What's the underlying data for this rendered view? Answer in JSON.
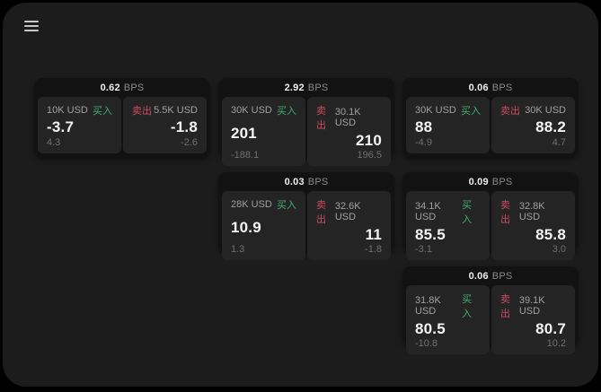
{
  "app": {
    "menu_icon": "hamburger-menu"
  },
  "labels": {
    "buy": "买入",
    "sell": "卖出",
    "bps": "BPS"
  },
  "colors": {
    "page_bg": "#1c1c1d",
    "outer_bg": "#000000",
    "card_bg": "#121213",
    "panel_bg": "#242425",
    "buy_green": "#3fae70",
    "sell_red": "#cc4b5c",
    "value_white": "#f4f4f4",
    "label_gray": "#a0a0a0",
    "sub_gray": "#6f6f6f"
  },
  "cards": [
    {
      "bps": "0.62",
      "buy": {
        "amount": "10K USD",
        "value": "-3.7",
        "delta": "4.3"
      },
      "sell": {
        "amount": "5.5K USD",
        "value": "-1.8",
        "delta": "-2.6"
      }
    },
    {
      "bps": "2.92",
      "buy": {
        "amount": "30K USD",
        "value": "201",
        "delta": "-188.1"
      },
      "sell": {
        "amount": "30.1K USD",
        "value": "210",
        "delta": "196.5"
      }
    },
    {
      "bps": "0.06",
      "buy": {
        "amount": "30K USD",
        "value": "88",
        "delta": "-4.9"
      },
      "sell": {
        "amount": "30K USD",
        "value": "88.2",
        "delta": "4.7"
      }
    },
    {
      "bps": "0.03",
      "buy": {
        "amount": "28K USD",
        "value": "10.9",
        "delta": "1.3"
      },
      "sell": {
        "amount": "32.6K USD",
        "value": "11",
        "delta": "-1.8"
      }
    },
    {
      "bps": "0.09",
      "buy": {
        "amount": "34.1K USD",
        "value": "85.5",
        "delta": "-3.1"
      },
      "sell": {
        "amount": "32.8K USD",
        "value": "85.8",
        "delta": "3.0"
      }
    },
    {
      "bps": "0.06",
      "buy": {
        "amount": "31.8K USD",
        "value": "80.5",
        "delta": "-10.8"
      },
      "sell": {
        "amount": "39.1K USD",
        "value": "80.7",
        "delta": "10.2"
      }
    }
  ]
}
